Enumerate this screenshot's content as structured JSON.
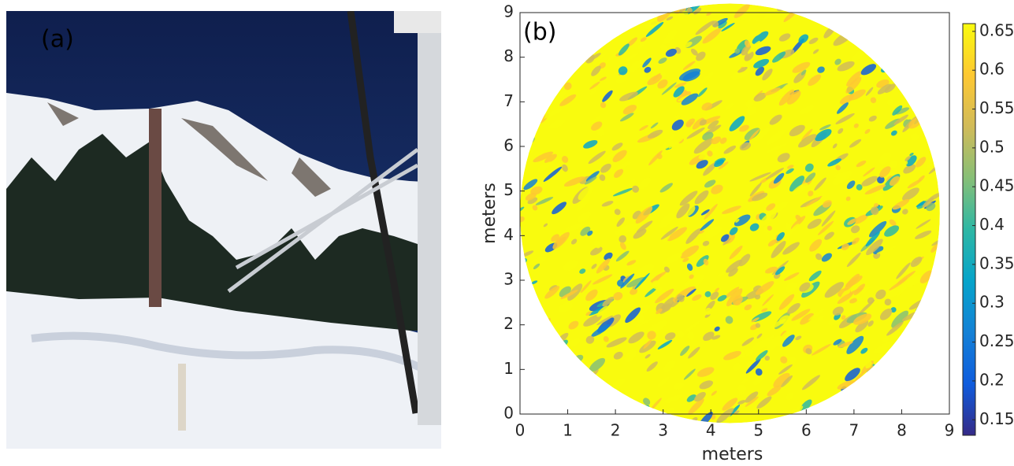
{
  "panel_a": {
    "label": "(a)"
  },
  "chart_data": {
    "type": "surface-map",
    "label": "(b)",
    "xlabel": "meters",
    "ylabel": "meters",
    "xlim": [
      0,
      9
    ],
    "ylim": [
      0,
      9
    ],
    "xticks": [
      0,
      1,
      2,
      3,
      4,
      5,
      6,
      7,
      8,
      9
    ],
    "yticks": [
      0,
      1,
      2,
      3,
      4,
      5,
      6,
      7,
      8,
      9
    ],
    "colorbar": {
      "lim": [
        0.13,
        0.66
      ],
      "ticks": [
        0.15,
        0.2,
        0.25,
        0.3,
        0.35,
        0.4,
        0.45,
        0.5,
        0.55,
        0.6,
        0.65
      ],
      "colormap": [
        "#352a87",
        "#0f5cdd",
        "#1481d6",
        "#06a4ca",
        "#2eb7a4",
        "#87bf77",
        "#d1bb59",
        "#fec832",
        "#f9fb0e"
      ]
    }
  }
}
